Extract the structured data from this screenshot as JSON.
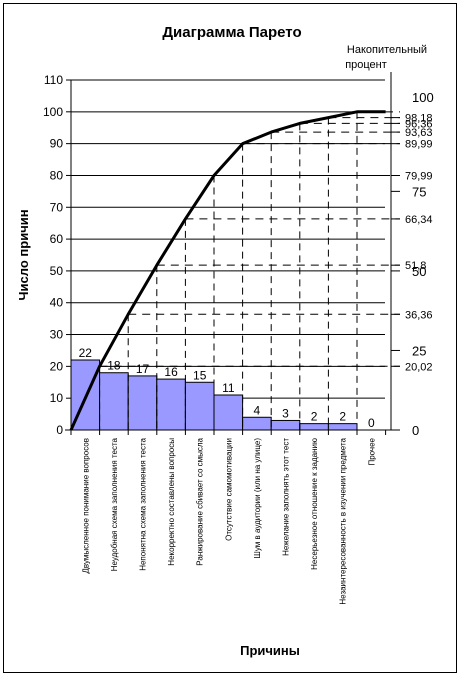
{
  "chart_data": {
    "type": "bar",
    "title": "Диаграмма Парето",
    "xlabel": "Причины",
    "ylabel": "Число причин",
    "y2label_line1": "Накопительный",
    "y2label_line2": "процент",
    "ylim": [
      0,
      110
    ],
    "yticks": [
      "0",
      "10",
      "20",
      "30",
      "40",
      "50",
      "60",
      "70",
      "80",
      "90",
      "100",
      "110"
    ],
    "categories": [
      "Двумысленное понимание вопросов",
      "Неудобная схема заполнения теста",
      "Непонятна схема заполнения теста",
      "Некорректно составлены вопросы",
      "Ранжирование сбивает со смысла",
      "Отсутствие самомотивации",
      "Шум в аудитории (или на улице)",
      "Нежелание заполнять этот тест",
      "Несерьезное отношение к заданию",
      "Незаинтересованность в изучении предмета",
      "Прочее"
    ],
    "values": [
      22,
      18,
      17,
      16,
      15,
      11,
      4,
      3,
      2,
      2,
      0
    ],
    "data_labels": [
      "22",
      "18",
      "17",
      "16",
      "15",
      "11",
      "4",
      "3",
      "2",
      "2",
      "0"
    ],
    "cumulative_percent": [
      0,
      20.02,
      36.36,
      51.8,
      66.34,
      79.99,
      89.99,
      93.63,
      96.36,
      98.18,
      100,
      100
    ],
    "cumulative_percent_labels": [
      "20,02",
      "36,36",
      "51,8",
      "66,34",
      "79,99",
      "89,99",
      "93,63",
      "96,36",
      "98,18"
    ],
    "percent_axis_labels": [
      "0",
      "25",
      "50",
      "75",
      "100"
    ],
    "percent_axis_values": [
      0,
      25,
      50,
      75,
      100
    ],
    "bar_color": "#9999ff",
    "line_color": "#000000"
  }
}
